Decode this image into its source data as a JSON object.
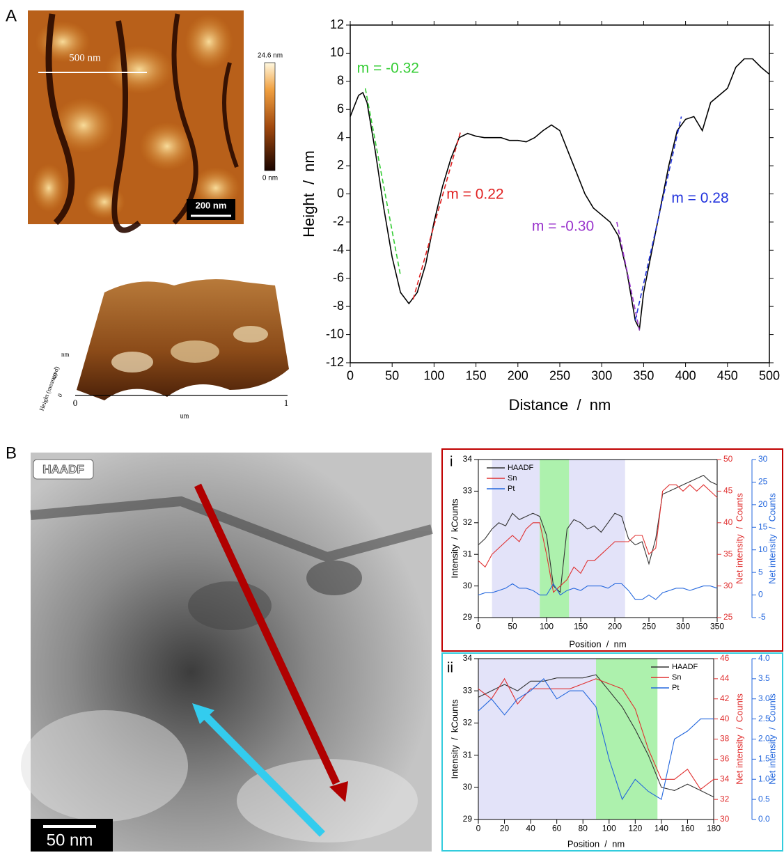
{
  "panels": {
    "a_label": "A",
    "b_label": "B",
    "afm_scale": "500 nm",
    "afm_scalebar": "200 nm",
    "colorbar_max": "24.6 nm",
    "colorbar_min": "0 nm",
    "afm3d": {
      "z_unit": "nm",
      "z_label": "Height (measured)",
      "z_tick": "40",
      "z_zero": "0",
      "x_start": "0",
      "x_end": "1",
      "x_unit": "um"
    },
    "tem_label": "HAADF",
    "tem_scalebar": "50 nm",
    "i_label": "i",
    "ii_label": "ii"
  },
  "chart_data": [
    {
      "type": "line",
      "xlabel": "Distance  /  nm",
      "ylabel": "Height  /  nm",
      "xlim": [
        0,
        500
      ],
      "ylim": [
        -12,
        12
      ],
      "xticks": [
        0,
        50,
        100,
        150,
        200,
        250,
        300,
        350,
        400,
        450,
        500
      ],
      "yticks": [
        -12,
        -10,
        -8,
        -6,
        -4,
        -2,
        0,
        2,
        4,
        6,
        8,
        10,
        12
      ],
      "x": [
        0,
        10,
        15,
        20,
        30,
        40,
        50,
        60,
        70,
        80,
        90,
        100,
        110,
        120,
        130,
        140,
        150,
        160,
        170,
        180,
        190,
        200,
        210,
        220,
        230,
        240,
        250,
        260,
        270,
        280,
        290,
        300,
        310,
        320,
        330,
        340,
        345,
        350,
        360,
        370,
        380,
        390,
        400,
        410,
        420,
        430,
        440,
        450,
        460,
        470,
        480,
        490,
        500
      ],
      "series": [
        {
          "color": "#000000",
          "values": [
            5.5,
            7.0,
            7.2,
            6.5,
            3,
            -1,
            -4.5,
            -7,
            -7.8,
            -7,
            -5,
            -2,
            0.5,
            2.5,
            4,
            4.3,
            4.1,
            4,
            4,
            4,
            3.8,
            3.8,
            3.7,
            4,
            4.5,
            4.9,
            4.5,
            3,
            1.5,
            0,
            -1,
            -1.5,
            -2,
            -3,
            -5.5,
            -9,
            -9.6,
            -7,
            -4,
            -1,
            2,
            4.5,
            5.3,
            5.5,
            4.5,
            6.5,
            7,
            7.5,
            9,
            9.6,
            9.6,
            9,
            8.5
          ]
        }
      ],
      "fits": [
        {
          "label": "m = -0.32",
          "color": "#33cc33",
          "x": [
            18,
            60
          ],
          "values": [
            7.5,
            -5.8
          ]
        },
        {
          "label": "m = 0.22",
          "color": "#e02020",
          "x": [
            75,
            132
          ],
          "values": [
            -7.5,
            4.5
          ]
        },
        {
          "label": "m = -0.30",
          "color": "#9933cc",
          "x": [
            318,
            345
          ],
          "values": [
            -2,
            -9.7
          ]
        },
        {
          "label": "m = 0.28",
          "color": "#2233dd",
          "x": [
            340,
            395
          ],
          "values": [
            -9,
            5.5
          ]
        }
      ]
    },
    {
      "type": "line",
      "xlabel": "Position  /  nm",
      "ylabel": "Intensity  /  kCounts",
      "y2label": "Net intensity  /  Counts",
      "y3label": "Net intensity  /  Counts",
      "xlim": [
        0,
        350
      ],
      "ylim": [
        29,
        34
      ],
      "y2lim": [
        25,
        50
      ],
      "y3lim": [
        -5,
        30
      ],
      "xticks": [
        0,
        50,
        100,
        150,
        200,
        250,
        300,
        350
      ],
      "yticks": [
        29,
        30,
        31,
        32,
        33,
        34
      ],
      "y2ticks": [
        25,
        30,
        35,
        40,
        45,
        50
      ],
      "y3ticks": [
        -5,
        0,
        5,
        10,
        15,
        20,
        25,
        30
      ],
      "legend": "upper left",
      "regions": [
        {
          "range": [
            20,
            90
          ],
          "color": "#dcdcf8"
        },
        {
          "range": [
            90,
            133
          ],
          "color": "#99ee99"
        },
        {
          "range": [
            133,
            215
          ],
          "color": "#dcdcf8"
        }
      ],
      "x": [
        0,
        10,
        20,
        30,
        40,
        50,
        60,
        70,
        80,
        90,
        100,
        110,
        120,
        130,
        140,
        150,
        160,
        170,
        180,
        190,
        200,
        210,
        220,
        230,
        240,
        250,
        260,
        270,
        280,
        290,
        300,
        310,
        320,
        330,
        340,
        350
      ],
      "series": [
        {
          "name": "HAADF",
          "color": "#333333",
          "values": [
            31.3,
            31.5,
            31.8,
            32,
            31.9,
            32.3,
            32.1,
            32.2,
            32.3,
            32.2,
            31.6,
            30.0,
            29.8,
            31.8,
            32.1,
            32,
            31.8,
            31.9,
            31.7,
            32,
            32.3,
            32.2,
            31.5,
            31.3,
            31.4,
            30.7,
            31.5,
            32.9,
            33,
            33.1,
            33.2,
            33.3,
            33.4,
            33.5,
            33.3,
            33.2
          ]
        },
        {
          "name": "Sn",
          "color": "#e03030",
          "axis": "y2",
          "values": [
            34,
            33,
            35,
            36,
            37,
            38,
            37,
            39,
            40,
            40,
            35,
            29,
            30,
            31,
            33,
            32,
            34,
            34,
            35,
            36,
            37,
            37,
            37,
            38,
            38,
            35,
            36,
            45,
            46,
            46,
            45,
            46,
            45,
            46,
            45,
            44
          ]
        },
        {
          "name": "Pt",
          "color": "#2266dd",
          "axis": "y3",
          "values": [
            0,
            0.5,
            0.5,
            1,
            1.5,
            2.5,
            1.5,
            1.5,
            1,
            0,
            0,
            2.5,
            0,
            1,
            1.5,
            1,
            2,
            2,
            2,
            1.5,
            2.5,
            2.5,
            1,
            -1,
            -1,
            0,
            -1,
            0.5,
            1,
            1.5,
            1.5,
            1,
            1.5,
            2,
            2,
            1.5
          ]
        }
      ]
    },
    {
      "type": "line",
      "xlabel": "Position  /  nm",
      "ylabel": "Intensity  /  kCounts",
      "y2label": "Net intensity  /  Counts",
      "y3label": "Net intensity  /  Counts",
      "xlim": [
        0,
        180
      ],
      "ylim": [
        29,
        34
      ],
      "y2lim": [
        30,
        46
      ],
      "y3lim": [
        0,
        4
      ],
      "xticks": [
        0,
        20,
        40,
        60,
        80,
        100,
        120,
        140,
        160,
        180
      ],
      "yticks": [
        29,
        30,
        31,
        32,
        33,
        34
      ],
      "y2ticks": [
        30,
        32,
        34,
        36,
        38,
        40,
        42,
        44,
        46
      ],
      "y3ticks": [
        {
          "value": 0,
          "label": "0.0"
        },
        {
          "value": 0.5,
          "label": "0.5"
        },
        {
          "value": 1,
          "label": "1.0"
        },
        {
          "value": 1.5,
          "label": "1.5"
        },
        {
          "value": 2,
          "label": "2.0"
        },
        {
          "value": 2.5,
          "label": "2.5"
        },
        {
          "value": 3,
          "label": "3.0"
        },
        {
          "value": 3.5,
          "label": "3.5"
        },
        {
          "value": 4,
          "label": "4.0"
        }
      ],
      "legend": "upper right",
      "regions": [
        {
          "range": [
            0,
            90
          ],
          "color": "#dcdcf8"
        },
        {
          "range": [
            90,
            137
          ],
          "color": "#99ee99"
        }
      ],
      "x": [
        0,
        10,
        20,
        30,
        40,
        50,
        60,
        70,
        80,
        90,
        100,
        110,
        120,
        130,
        140,
        150,
        160,
        170,
        180
      ],
      "series": [
        {
          "name": "HAADF",
          "color": "#333333",
          "values": [
            32.8,
            33,
            33.2,
            33,
            33.3,
            33.3,
            33.4,
            33.4,
            33.4,
            33.5,
            33,
            32.5,
            31.8,
            31,
            30,
            29.9,
            30.1,
            29.9,
            29.7
          ]
        },
        {
          "name": "Sn",
          "color": "#e03030",
          "axis": "y2",
          "values": [
            43,
            42,
            44,
            41.5,
            43,
            43,
            43,
            43,
            43.5,
            44,
            43.5,
            43,
            41,
            37,
            34,
            34,
            35,
            33,
            34
          ]
        },
        {
          "name": "Pt",
          "color": "#2266dd",
          "axis": "y3",
          "values": [
            2.7,
            3,
            2.6,
            3.0,
            3.2,
            3.5,
            3.0,
            3.2,
            3.2,
            2.8,
            1.5,
            0.5,
            1,
            0.7,
            0.5,
            2,
            2.2,
            2.5,
            2.5
          ]
        }
      ]
    }
  ]
}
